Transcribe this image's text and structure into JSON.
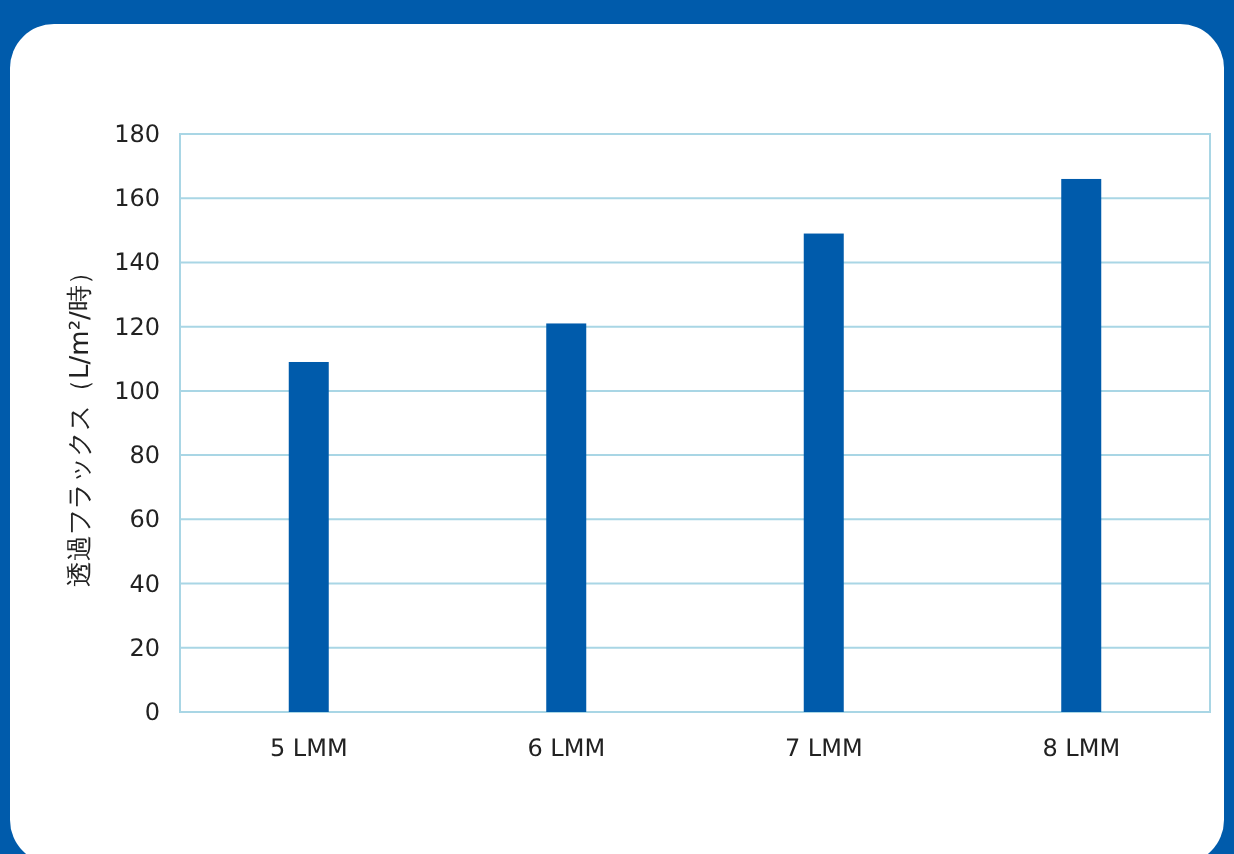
{
  "chart_data": {
    "type": "bar",
    "ylabel": "透過フラックス（L/m²/時）",
    "categories": [
      "5 LMM",
      "6 LMM",
      "7 LMM",
      "8 LMM"
    ],
    "values": [
      109,
      121,
      149,
      166
    ],
    "color": "#005bab",
    "ylim": [
      0,
      180
    ],
    "yticks": [
      0,
      20,
      40,
      60,
      80,
      100,
      120,
      140,
      160,
      180
    ],
    "grid": "y"
  }
}
